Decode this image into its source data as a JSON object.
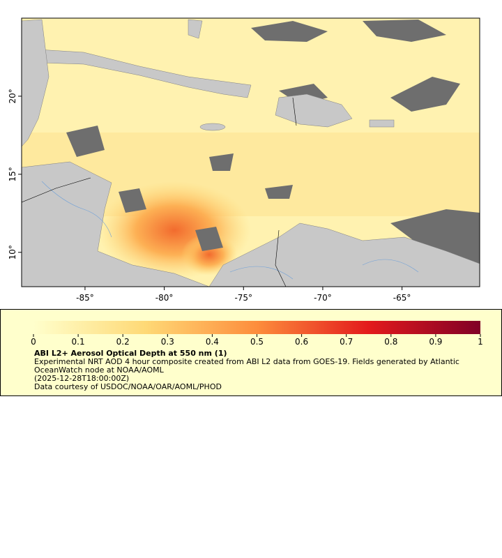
{
  "map": {
    "xlim": [
      -89,
      -60.1
    ],
    "ylim": [
      7.8,
      25
    ],
    "xticks": [
      {
        "value": -85,
        "label": "-85°"
      },
      {
        "value": -80,
        "label": "-80°"
      },
      {
        "value": -75,
        "label": "-75°"
      },
      {
        "value": -70,
        "label": "-70°"
      },
      {
        "value": -65,
        "label": "-65°"
      }
    ],
    "yticks": [
      {
        "value": 10,
        "label": "10°"
      },
      {
        "value": 15,
        "label": "15°"
      },
      {
        "value": 20,
        "label": "20°"
      }
    ]
  },
  "colorbar": {
    "lim": [
      0,
      1
    ],
    "ticks": [
      0,
      0.1,
      0.2,
      0.3,
      0.4,
      0.5,
      0.6,
      0.7,
      0.8,
      0.9,
      1
    ]
  },
  "legend": {
    "title": "ABI L2+ Aerosol Optical Depth at 550 nm (1)",
    "description": "Experimental NRT AOD 4 hour composite created from ABI L2 data from GOES-19. Fields generated by Atlantic OceanWatch node at NOAA/AOML",
    "time": "(2025-12-28T18:00:00Z)",
    "credit": "Data courtesy of USDOC/NOAA/OAR/AOML/PHOD"
  }
}
